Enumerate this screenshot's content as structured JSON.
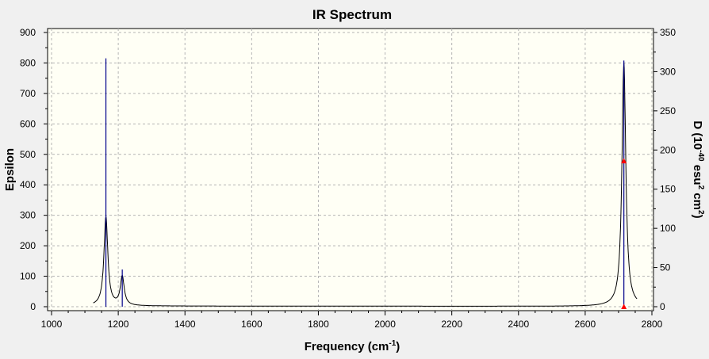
{
  "chart_data": {
    "type": "line",
    "title": "IR Spectrum",
    "xlabel": "Frequency (cm",
    "xlabel_sup": "-1",
    "xlabel_end": ")",
    "ylabel": "Epsilon",
    "y2label_parts": [
      "D (10",
      "-40",
      " esu",
      "2",
      " cm",
      "2",
      ")"
    ],
    "xlim": [
      1000,
      2800
    ],
    "ylim": [
      0,
      900
    ],
    "y2lim": [
      0,
      350
    ],
    "x_ticks": [
      1000,
      1200,
      1400,
      1600,
      1800,
      2000,
      2200,
      2400,
      2600,
      2800
    ],
    "y_ticks": [
      0,
      100,
      200,
      300,
      400,
      500,
      600,
      700,
      800,
      900
    ],
    "y2_ticks": [
      0,
      50,
      100,
      150,
      200,
      250,
      300,
      350
    ],
    "grid": true,
    "colors": {
      "background": "#fffff5",
      "spectrum": "#000000",
      "stick": "#00008b",
      "marker": "#ff0000"
    },
    "peaks": [
      {
        "x": 1163,
        "epsilon": 292,
        "width": 7
      },
      {
        "x": 1212,
        "epsilon": 95,
        "width": 7
      },
      {
        "x": 2716,
        "epsilon": 800,
        "width": 7
      }
    ],
    "sticks": [
      {
        "x": 1163,
        "intensity": 815
      },
      {
        "x": 1212,
        "intensity": 122
      },
      {
        "x": 2716,
        "intensity": 808
      }
    ],
    "markers": [
      {
        "x": 2716,
        "d": 186
      },
      {
        "x": 2716,
        "d": 0
      }
    ]
  }
}
